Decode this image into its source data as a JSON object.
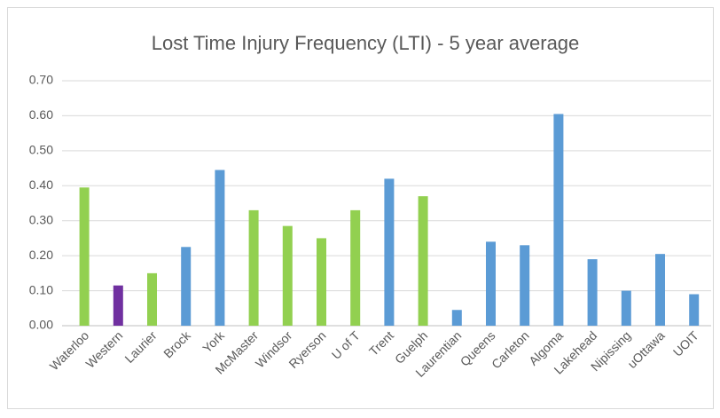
{
  "chart_data": {
    "type": "bar",
    "title": "Lost Time Injury Frequency (LTI) - 5 year average",
    "categories": [
      "Waterloo",
      "Western",
      "Laurier",
      "Brock",
      "York",
      "McMaster",
      "Windsor",
      "Ryerson",
      "U of T",
      "Trent",
      "Guelph",
      "Laurentian",
      "Queens",
      "Carleton",
      "Algoma",
      "Lakehead",
      "Nipissing",
      "uOttawa",
      "UOIT"
    ],
    "values": [
      0.395,
      0.115,
      0.15,
      0.225,
      0.445,
      0.33,
      0.285,
      0.25,
      0.33,
      0.42,
      0.37,
      0.045,
      0.24,
      0.23,
      0.605,
      0.19,
      0.1,
      0.205,
      0.09
    ],
    "colors": [
      "#92d050",
      "#7030a0",
      "#92d050",
      "#5b9bd5",
      "#5b9bd5",
      "#92d050",
      "#92d050",
      "#92d050",
      "#92d050",
      "#5b9bd5",
      "#92d050",
      "#5b9bd5",
      "#5b9bd5",
      "#5b9bd5",
      "#5b9bd5",
      "#5b9bd5",
      "#5b9bd5",
      "#5b9bd5",
      "#5b9bd5"
    ],
    "ylim": [
      0,
      0.7
    ],
    "yticks": [
      {
        "value": 0,
        "label": "0.00"
      },
      {
        "value": 0.1,
        "label": "0.10"
      },
      {
        "value": 0.2,
        "label": "0.20"
      },
      {
        "value": 0.3,
        "label": "0.30"
      },
      {
        "value": 0.4,
        "label": "0.40"
      },
      {
        "value": 0.5,
        "label": "0.50"
      },
      {
        "value": 0.6,
        "label": "0.60"
      },
      {
        "value": 0.7,
        "label": "0.70"
      }
    ],
    "grid": true
  }
}
